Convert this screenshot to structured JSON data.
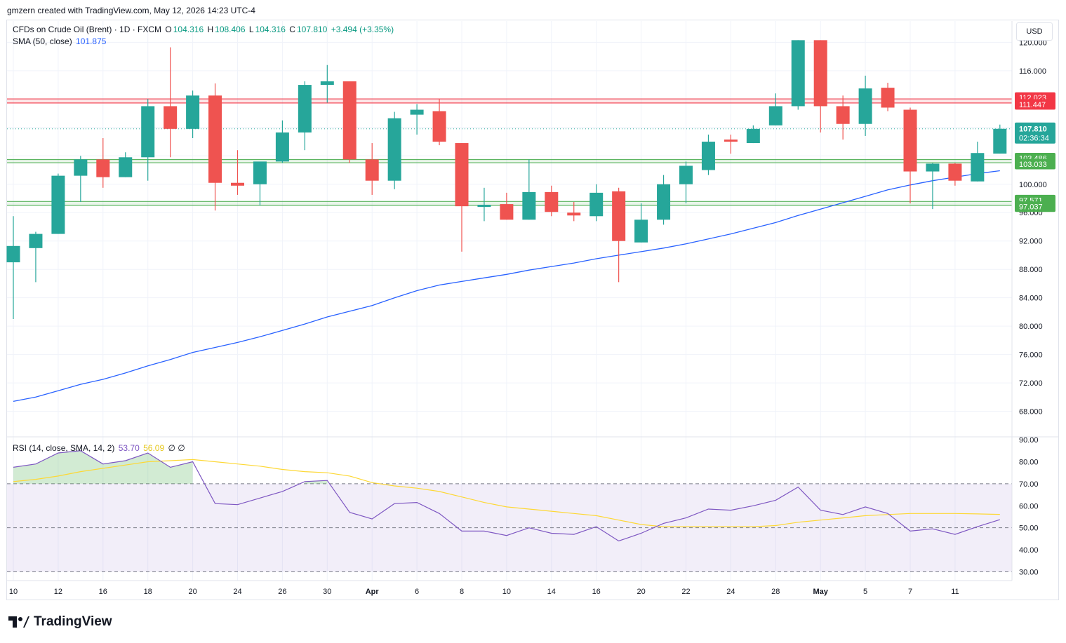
{
  "header": {
    "credit": "gmzern created with TradingView.com, May 12, 2026 14:23 UTC-4"
  },
  "legend": {
    "title": "CFDs on Crude Oil (Brent) · 1D · FXCM",
    "o_label": "O",
    "o_value": "104.316",
    "h_label": "H",
    "h_value": "108.406",
    "l_label": "L",
    "l_value": "104.316",
    "c_label": "C",
    "c_value": "107.810",
    "change": "+3.494 (+3.35%)",
    "sma_label": "SMA (50, close)",
    "sma_value": "101.875",
    "rsi_label": "RSI (14, close, SMA, 14, 2)",
    "rsi_value": "53.70",
    "rsi_sma_value": "56.09",
    "rsi_extra": "∅ ∅"
  },
  "currency": "USD",
  "brand": "TradingView",
  "colors": {
    "up": "#26a69a",
    "down": "#ef5350",
    "sma": "#2962ff",
    "rsi": "#7e57c2",
    "rsi_sma": "#fdd835",
    "resistance": "#f23645",
    "support": "#4caf50"
  },
  "chart_data": {
    "type": "candlestick",
    "symbol": "CFDs on Crude Oil (Brent)",
    "interval": "1D",
    "price_axis": {
      "ticks": [
        "120.000",
        "116.000",
        "112.000",
        "108.000",
        "104.000",
        "100.000",
        "96.000",
        "92.000",
        "88.000",
        "84.000",
        "80.000",
        "76.000",
        "72.000",
        "68.000"
      ],
      "range": [
        64.5,
        123
      ]
    },
    "time_axis": {
      "ticks": [
        {
          "label": "10",
          "bar": 0
        },
        {
          "label": "12",
          "bar": 2
        },
        {
          "label": "16",
          "bar": 4
        },
        {
          "label": "18",
          "bar": 6
        },
        {
          "label": "20",
          "bar": 8
        },
        {
          "label": "24",
          "bar": 10
        },
        {
          "label": "26",
          "bar": 12
        },
        {
          "label": "30",
          "bar": 14
        },
        {
          "label": "Apr",
          "bar": 16
        },
        {
          "label": "6",
          "bar": 18
        },
        {
          "label": "8",
          "bar": 20
        },
        {
          "label": "10",
          "bar": 22
        },
        {
          "label": "14",
          "bar": 24
        },
        {
          "label": "16",
          "bar": 26
        },
        {
          "label": "20",
          "bar": 28
        },
        {
          "label": "22",
          "bar": 30
        },
        {
          "label": "24",
          "bar": 32
        },
        {
          "label": "28",
          "bar": 34
        },
        {
          "label": "May",
          "bar": 36
        },
        {
          "label": "5",
          "bar": 38
        },
        {
          "label": "7",
          "bar": 40
        },
        {
          "label": "11",
          "bar": 42
        }
      ]
    },
    "candles": [
      {
        "o": 89.0,
        "h": 95.5,
        "l": 81.0,
        "c": 91.3
      },
      {
        "o": 91.0,
        "h": 93.3,
        "l": 86.2,
        "c": 93.0
      },
      {
        "o": 93.0,
        "h": 101.5,
        "l": 93.0,
        "c": 101.2
      },
      {
        "o": 101.2,
        "h": 104.0,
        "l": 97.5,
        "c": 103.5
      },
      {
        "o": 103.5,
        "h": 106.5,
        "l": 99.5,
        "c": 101.0
      },
      {
        "o": 101.0,
        "h": 104.5,
        "l": 101.0,
        "c": 103.8
      },
      {
        "o": 103.8,
        "h": 112.0,
        "l": 100.5,
        "c": 111.0
      },
      {
        "o": 111.0,
        "h": 119.3,
        "l": 103.8,
        "c": 107.8
      },
      {
        "o": 107.8,
        "h": 113.2,
        "l": 106.5,
        "c": 112.5
      },
      {
        "o": 112.5,
        "h": 114.2,
        "l": 96.3,
        "c": 100.2
      },
      {
        "o": 100.2,
        "h": 104.8,
        "l": 98.5,
        "c": 99.8
      },
      {
        "o": 100.0,
        "h": 103.0,
        "l": 97.0,
        "c": 103.2
      },
      {
        "o": 103.2,
        "h": 109.0,
        "l": 103.0,
        "c": 107.3
      },
      {
        "o": 107.3,
        "h": 114.5,
        "l": 104.8,
        "c": 114.0
      },
      {
        "o": 114.0,
        "h": 116.8,
        "l": 111.5,
        "c": 114.5
      },
      {
        "o": 114.5,
        "h": 114.5,
        "l": 103.0,
        "c": 103.5
      },
      {
        "o": 103.5,
        "h": 105.8,
        "l": 98.5,
        "c": 100.5
      },
      {
        "o": 100.5,
        "h": 110.2,
        "l": 99.3,
        "c": 109.3
      },
      {
        "o": 109.8,
        "h": 111.3,
        "l": 107.0,
        "c": 110.5
      },
      {
        "o": 110.3,
        "h": 112.0,
        "l": 105.5,
        "c": 106.0
      },
      {
        "o": 105.8,
        "h": 105.8,
        "l": 90.5,
        "c": 96.9
      },
      {
        "o": 96.8,
        "h": 99.5,
        "l": 94.8,
        "c": 97.1
      },
      {
        "o": 97.2,
        "h": 98.8,
        "l": 95.0,
        "c": 95.0
      },
      {
        "o": 95.0,
        "h": 103.5,
        "l": 95.0,
        "c": 98.9
      },
      {
        "o": 98.9,
        "h": 99.8,
        "l": 95.5,
        "c": 96.1
      },
      {
        "o": 96.0,
        "h": 97.5,
        "l": 94.8,
        "c": 95.6
      },
      {
        "o": 95.5,
        "h": 100.0,
        "l": 94.8,
        "c": 98.8
      },
      {
        "o": 99.0,
        "h": 99.5,
        "l": 86.2,
        "c": 92.0
      },
      {
        "o": 91.8,
        "h": 97.3,
        "l": 91.8,
        "c": 95.0
      },
      {
        "o": 95.0,
        "h": 101.3,
        "l": 94.3,
        "c": 100.0
      },
      {
        "o": 100.0,
        "h": 103.2,
        "l": 97.3,
        "c": 102.6
      },
      {
        "o": 102.0,
        "h": 107.0,
        "l": 101.3,
        "c": 106.0
      },
      {
        "o": 106.3,
        "h": 107.0,
        "l": 104.3,
        "c": 106.0
      },
      {
        "o": 105.8,
        "h": 108.3,
        "l": 105.8,
        "c": 107.8
      },
      {
        "o": 108.3,
        "h": 112.8,
        "l": 108.3,
        "c": 111.0
      },
      {
        "o": 111.0,
        "h": 120.3,
        "l": 110.5,
        "c": 120.3
      },
      {
        "o": 120.3,
        "h": 120.3,
        "l": 107.3,
        "c": 111.0
      },
      {
        "o": 111.0,
        "h": 112.5,
        "l": 106.3,
        "c": 108.5
      },
      {
        "o": 108.5,
        "h": 115.3,
        "l": 106.8,
        "c": 113.5
      },
      {
        "o": 113.6,
        "h": 114.3,
        "l": 110.3,
        "c": 110.8
      },
      {
        "o": 110.5,
        "h": 110.8,
        "l": 97.3,
        "c": 101.8
      },
      {
        "o": 101.8,
        "h": 103.0,
        "l": 96.5,
        "c": 102.9
      },
      {
        "o": 102.9,
        "h": 103.0,
        "l": 99.8,
        "c": 100.5
      },
      {
        "o": 100.4,
        "h": 106.0,
        "l": 100.4,
        "c": 104.4
      },
      {
        "o": 104.316,
        "h": 108.406,
        "l": 104.316,
        "c": 107.81
      }
    ],
    "sma50": [
      69.4,
      70.0,
      70.9,
      71.8,
      72.5,
      73.4,
      74.4,
      75.3,
      76.3,
      77.0,
      77.7,
      78.5,
      79.4,
      80.3,
      81.3,
      82.1,
      82.9,
      84.0,
      85.0,
      85.8,
      86.3,
      86.8,
      87.3,
      87.9,
      88.4,
      88.9,
      89.5,
      90.0,
      90.5,
      91.0,
      91.6,
      92.3,
      93.0,
      93.8,
      94.6,
      95.6,
      96.5,
      97.4,
      98.3,
      99.2,
      99.9,
      100.5,
      101.0,
      101.5,
      101.9
    ],
    "levels": [
      {
        "value": 112.023,
        "label": "112.023",
        "kind": "resistance"
      },
      {
        "value": 111.447,
        "label": "111.447",
        "kind": "resistance"
      },
      {
        "value": 103.486,
        "label": "103.486",
        "kind": "support"
      },
      {
        "value": 103.033,
        "label": "103.033",
        "kind": "support"
      },
      {
        "value": 97.571,
        "label": "97.571",
        "kind": "support"
      },
      {
        "value": 97.037,
        "label": "97.037",
        "kind": "support"
      }
    ],
    "last_price": {
      "value": 107.81,
      "label": "107.810",
      "countdown": "02:36:34"
    },
    "rsi": {
      "ticks": [
        "90.00",
        "80.00",
        "70.00",
        "60.00",
        "50.00",
        "40.00",
        "30.00"
      ],
      "range": [
        26,
        91
      ],
      "upper": 70,
      "middle": 50,
      "lower": 30,
      "values": [
        77.5,
        79.0,
        84.0,
        85.0,
        79.0,
        80.5,
        84.0,
        77.5,
        80.0,
        61.0,
        60.5,
        63.5,
        66.5,
        71.0,
        71.5,
        57.0,
        54.0,
        61.0,
        61.5,
        56.5,
        48.5,
        48.5,
        46.5,
        50.0,
        47.5,
        47.0,
        50.5,
        44.0,
        47.5,
        52.0,
        54.5,
        58.5,
        58.0,
        60.0,
        62.5,
        68.5,
        58.0,
        56.0,
        59.5,
        56.5,
        48.5,
        49.5,
        47.0,
        50.5,
        53.7
      ],
      "sma": [
        71.0,
        72.0,
        73.5,
        75.5,
        77.0,
        78.5,
        80.0,
        80.5,
        81.0,
        80.0,
        79.0,
        78.0,
        76.5,
        75.5,
        75.0,
        73.5,
        70.5,
        69.0,
        68.0,
        66.5,
        64.0,
        61.5,
        59.5,
        58.5,
        57.5,
        56.5,
        55.5,
        53.5,
        51.5,
        50.5,
        50.5,
        50.5,
        50.5,
        50.5,
        51.0,
        52.5,
        53.5,
        54.5,
        55.5,
        56.0,
        56.5,
        56.5,
        56.5,
        56.3,
        56.09
      ]
    }
  }
}
